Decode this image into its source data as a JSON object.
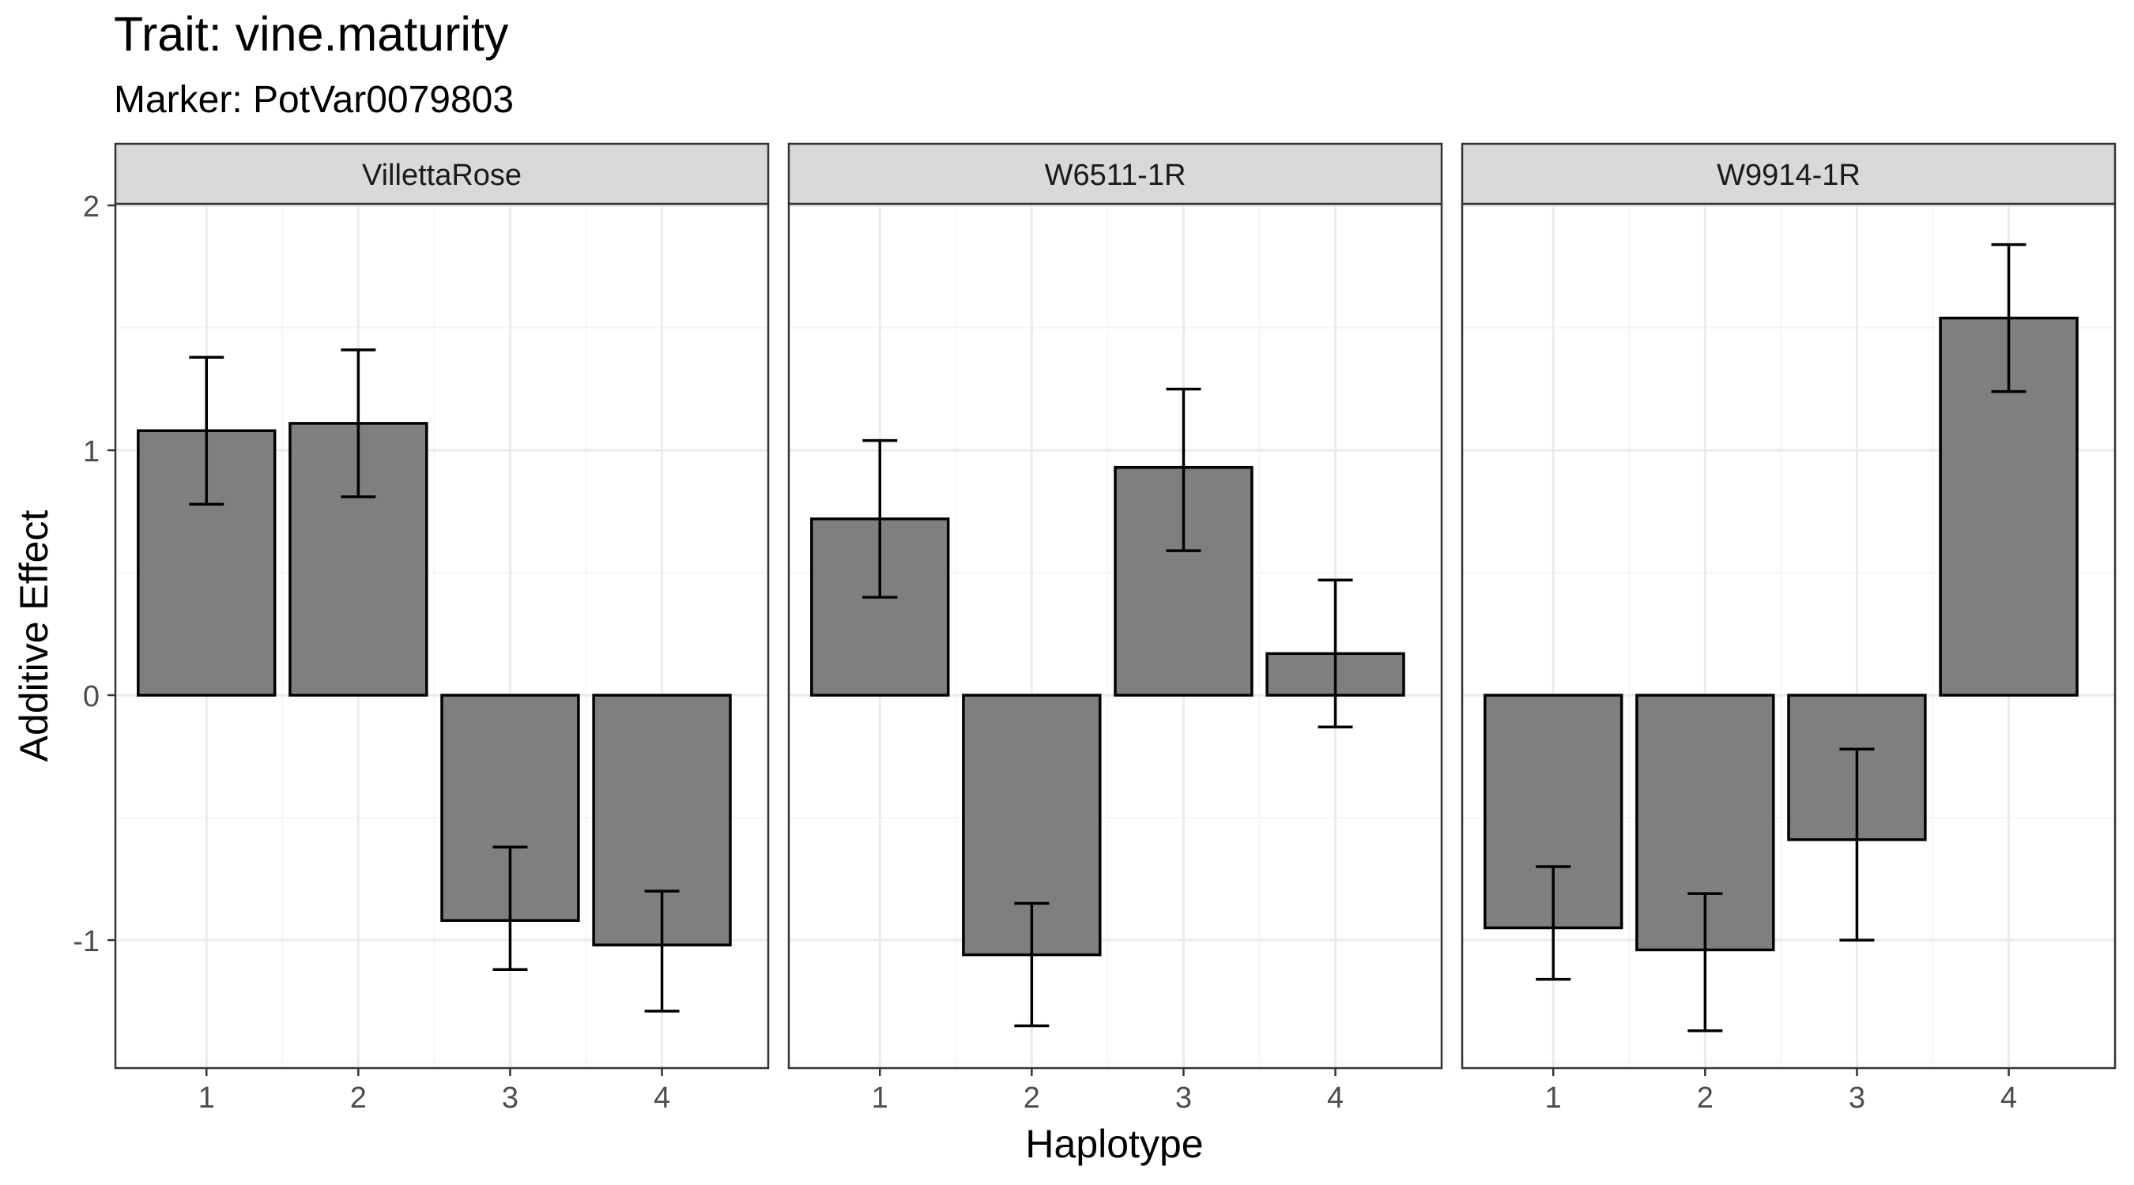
{
  "chart_data": {
    "type": "bar",
    "title": "Trait: vine.maturity",
    "subtitle": "Marker: PotVar0079803",
    "xlabel": "Haplotype",
    "ylabel": "Additive Effect",
    "categories": [
      "1",
      "2",
      "3",
      "4"
    ],
    "ylim": [
      -1.52,
      2.0
    ],
    "y_ticks": [
      -1,
      0,
      1,
      2
    ],
    "y_tick_labels": [
      "-1",
      "0",
      "1",
      "2"
    ],
    "grid": true,
    "panels": [
      {
        "name": "VillettaRose",
        "values": [
          1.08,
          1.11,
          -0.92,
          -1.02
        ],
        "error_low": [
          0.78,
          0.81,
          -1.12,
          -1.29
        ],
        "error_high": [
          1.38,
          1.41,
          -0.62,
          -0.8
        ]
      },
      {
        "name": "W6511-1R",
        "values": [
          0.72,
          -1.06,
          0.93,
          0.17
        ],
        "error_low": [
          0.4,
          -1.35,
          0.59,
          -0.13
        ],
        "error_high": [
          1.04,
          -0.85,
          1.25,
          0.47
        ]
      },
      {
        "name": "W9914-1R",
        "values": [
          -0.95,
          -1.04,
          -0.59,
          1.54
        ],
        "error_low": [
          -1.16,
          -1.37,
          -1.0,
          1.24
        ],
        "error_high": [
          -0.7,
          -0.81,
          -0.22,
          1.84
        ]
      }
    ],
    "colors": {
      "bar_fill": "#7f7f7f",
      "bar_stroke": "#000000",
      "strip_fill": "#d9d9d9",
      "panel_border": "#333333",
      "grid_major": "#ebebeb",
      "grid_minor": "#f4f4f4",
      "text": "#000000",
      "tick_text": "#4d4d4d"
    }
  }
}
